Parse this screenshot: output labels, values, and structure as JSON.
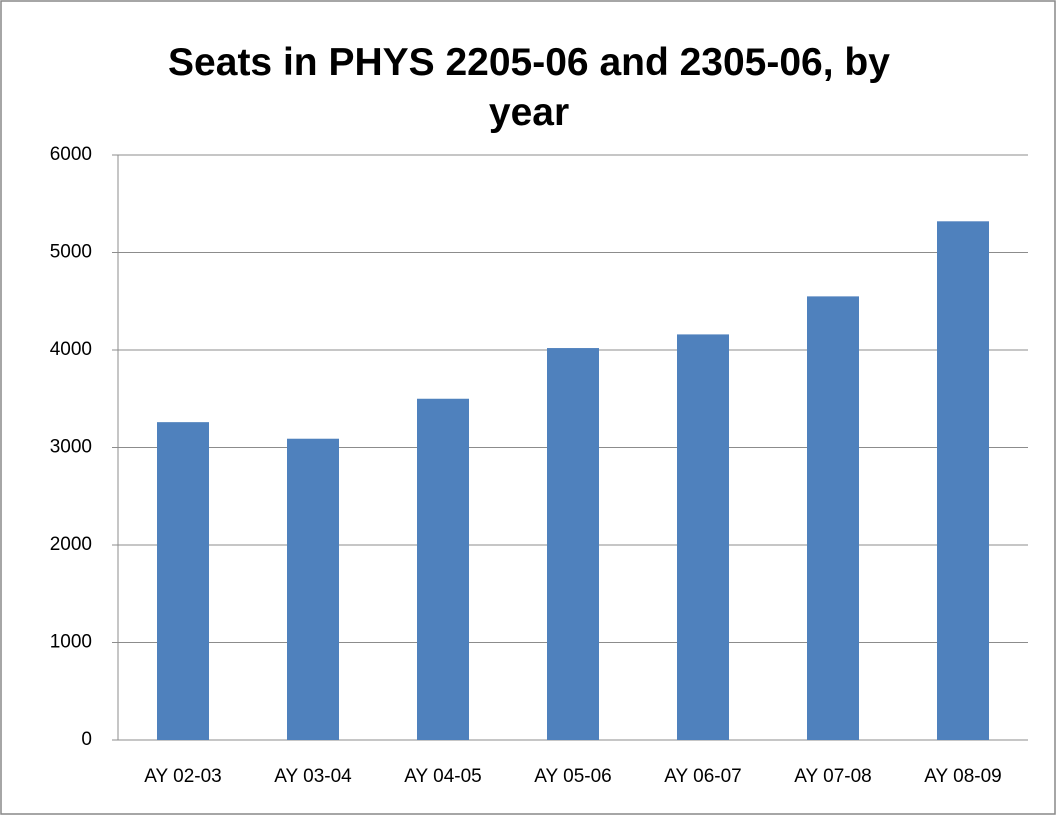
{
  "chart_data": {
    "type": "bar",
    "title": "Seats in PHYS 2205-06 and 2305-06, by year",
    "categories": [
      "AY 02-03",
      "AY 03-04",
      "AY 04-05",
      "AY 05-06",
      "AY 06-07",
      "AY 07-08",
      "AY 08-09"
    ],
    "values": [
      3260,
      3090,
      3500,
      4020,
      4160,
      4550,
      5320
    ],
    "color": "#4f81bd",
    "ylim": [
      0,
      6000
    ],
    "yticks": [
      0,
      1000,
      2000,
      3000,
      4000,
      5000,
      6000
    ],
    "grid": true
  }
}
